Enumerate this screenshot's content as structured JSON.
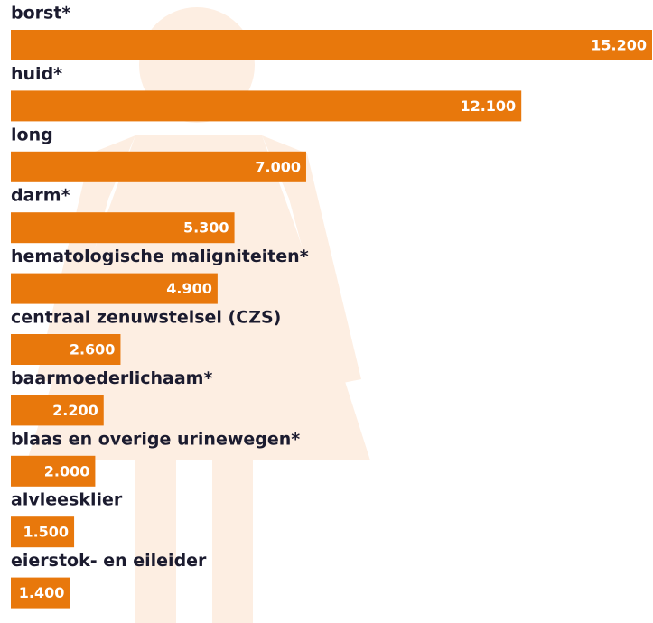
{
  "chart_data": {
    "type": "bar",
    "orientation": "horizontal",
    "categories": [
      "borst*",
      "huid*",
      "long",
      "darm*",
      "hematologische maligniteiten*",
      "centraal zenuwstelsel (CZS)",
      "baarmoederlichaam*",
      "blaas en overige urinewegen*",
      "alvleesklier",
      "eierstok- en eileider"
    ],
    "values": [
      15200,
      12100,
      7000,
      5300,
      4900,
      2600,
      2200,
      2000,
      1500,
      1400
    ],
    "value_labels": [
      "15.200",
      "12.100",
      "7.000",
      "5.300",
      "4.900",
      "2.600",
      "2.200",
      "2.000",
      "1.500",
      "1.400"
    ],
    "color": "#e8780c"
  }
}
